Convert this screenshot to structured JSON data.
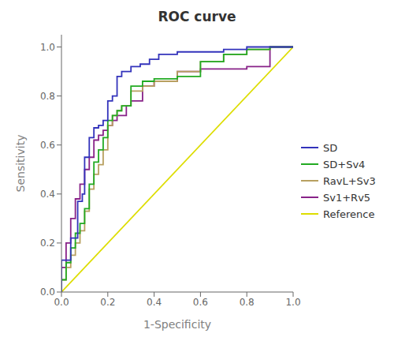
{
  "chart_data": {
    "type": "line",
    "title": "ROC curve",
    "x_label": "1-Specificity",
    "y_label": "Sensitivity",
    "xlim": [
      0.0,
      1.0
    ],
    "ylim": [
      0.0,
      1.05
    ],
    "xticks": [
      {
        "value": 0.0,
        "label": "0.0"
      },
      {
        "value": 0.2,
        "label": "0.2"
      },
      {
        "value": 0.4,
        "label": "0.4"
      },
      {
        "value": 0.6,
        "label": "0.6"
      },
      {
        "value": 0.8,
        "label": "0.8"
      },
      {
        "value": 1.0,
        "label": "1.0"
      }
    ],
    "yticks": [
      {
        "value": 0.0,
        "label": "0.0"
      },
      {
        "value": 0.2,
        "label": "0.2"
      },
      {
        "value": 0.4,
        "label": "0.4"
      },
      {
        "value": 0.6,
        "label": "0.6"
      },
      {
        "value": 0.8,
        "label": "0.8"
      },
      {
        "value": 1.0,
        "label": "1.0"
      }
    ],
    "grid": false,
    "legend": "right",
    "series": [
      {
        "name": "SD",
        "color": "#3333bb",
        "x": [
          0.0,
          0.0,
          0.04,
          0.04,
          0.07,
          0.07,
          0.09,
          0.09,
          0.1,
          0.1,
          0.12,
          0.12,
          0.14,
          0.14,
          0.16,
          0.16,
          0.18,
          0.18,
          0.2,
          0.2,
          0.22,
          0.22,
          0.24,
          0.24,
          0.26,
          0.26,
          0.3,
          0.3,
          0.34,
          0.34,
          0.38,
          0.38,
          0.42,
          0.42,
          0.5,
          0.5,
          0.6,
          0.6,
          0.7,
          0.7,
          0.8,
          0.8,
          0.9,
          0.9,
          1.0
        ],
        "values": [
          0.0,
          0.13,
          0.13,
          0.22,
          0.22,
          0.37,
          0.37,
          0.4,
          0.4,
          0.55,
          0.55,
          0.63,
          0.63,
          0.67,
          0.67,
          0.68,
          0.68,
          0.7,
          0.7,
          0.78,
          0.78,
          0.8,
          0.8,
          0.88,
          0.88,
          0.9,
          0.9,
          0.92,
          0.92,
          0.93,
          0.93,
          0.95,
          0.95,
          0.97,
          0.97,
          0.98,
          0.98,
          0.98,
          0.98,
          0.99,
          0.99,
          1.0,
          1.0,
          1.0,
          1.0
        ]
      },
      {
        "name": "SD+Sv4",
        "color": "#22aa22",
        "x": [
          0.0,
          0.0,
          0.02,
          0.02,
          0.04,
          0.04,
          0.06,
          0.06,
          0.08,
          0.08,
          0.1,
          0.1,
          0.12,
          0.12,
          0.14,
          0.14,
          0.16,
          0.16,
          0.18,
          0.18,
          0.2,
          0.2,
          0.22,
          0.22,
          0.24,
          0.24,
          0.26,
          0.26,
          0.3,
          0.3,
          0.35,
          0.35,
          0.4,
          0.4,
          0.5,
          0.5,
          0.6,
          0.6,
          0.7,
          0.7,
          0.8,
          0.8,
          0.9,
          0.9,
          1.0
        ],
        "values": [
          0.0,
          0.05,
          0.05,
          0.12,
          0.12,
          0.18,
          0.18,
          0.24,
          0.24,
          0.28,
          0.28,
          0.34,
          0.34,
          0.44,
          0.44,
          0.53,
          0.53,
          0.58,
          0.58,
          0.63,
          0.63,
          0.7,
          0.7,
          0.72,
          0.72,
          0.74,
          0.74,
          0.76,
          0.76,
          0.84,
          0.84,
          0.86,
          0.86,
          0.87,
          0.87,
          0.88,
          0.88,
          0.94,
          0.94,
          0.97,
          0.97,
          0.99,
          0.99,
          1.0,
          1.0
        ]
      },
      {
        "name": "RavL+Sv3",
        "color": "#b8a060",
        "x": [
          0.0,
          0.0,
          0.02,
          0.02,
          0.04,
          0.04,
          0.06,
          0.06,
          0.08,
          0.08,
          0.1,
          0.1,
          0.12,
          0.12,
          0.14,
          0.14,
          0.16,
          0.16,
          0.18,
          0.18,
          0.2,
          0.2,
          0.22,
          0.22,
          0.24,
          0.24,
          0.26,
          0.26,
          0.3,
          0.3,
          0.35,
          0.35,
          0.4,
          0.4,
          0.5,
          0.5,
          0.6,
          0.6,
          0.7,
          0.7,
          0.8,
          0.8,
          0.9,
          0.9,
          1.0
        ],
        "values": [
          0.0,
          0.05,
          0.05,
          0.1,
          0.1,
          0.15,
          0.15,
          0.2,
          0.2,
          0.25,
          0.25,
          0.33,
          0.33,
          0.42,
          0.42,
          0.48,
          0.48,
          0.52,
          0.52,
          0.58,
          0.58,
          0.68,
          0.68,
          0.72,
          0.72,
          0.74,
          0.74,
          0.76,
          0.76,
          0.82,
          0.82,
          0.84,
          0.84,
          0.86,
          0.86,
          0.9,
          0.9,
          0.94,
          0.94,
          0.97,
          0.97,
          0.99,
          0.99,
          1.0,
          1.0
        ]
      },
      {
        "name": "Sv1+Rv5",
        "color": "#882288",
        "x": [
          0.0,
          0.0,
          0.02,
          0.02,
          0.04,
          0.04,
          0.06,
          0.06,
          0.08,
          0.08,
          0.1,
          0.1,
          0.12,
          0.12,
          0.14,
          0.14,
          0.16,
          0.16,
          0.18,
          0.18,
          0.2,
          0.2,
          0.22,
          0.22,
          0.24,
          0.24,
          0.26,
          0.26,
          0.28,
          0.28,
          0.3,
          0.3,
          0.35,
          0.35,
          0.4,
          0.4,
          0.5,
          0.5,
          0.6,
          0.6,
          0.7,
          0.7,
          0.8,
          0.8,
          0.85,
          0.85,
          0.9,
          0.9,
          1.0
        ],
        "values": [
          0.0,
          0.1,
          0.1,
          0.2,
          0.2,
          0.3,
          0.3,
          0.38,
          0.38,
          0.44,
          0.44,
          0.5,
          0.5,
          0.55,
          0.55,
          0.62,
          0.62,
          0.64,
          0.64,
          0.66,
          0.66,
          0.68,
          0.68,
          0.7,
          0.7,
          0.72,
          0.72,
          0.72,
          0.72,
          0.76,
          0.76,
          0.78,
          0.78,
          0.84,
          0.84,
          0.86,
          0.86,
          0.9,
          0.9,
          0.91,
          0.91,
          0.91,
          0.91,
          0.92,
          0.92,
          0.92,
          0.92,
          1.0,
          1.0
        ]
      },
      {
        "name": "Reference",
        "color": "#dddd00",
        "x": [
          0,
          1
        ],
        "values": [
          0,
          1
        ]
      }
    ]
  }
}
